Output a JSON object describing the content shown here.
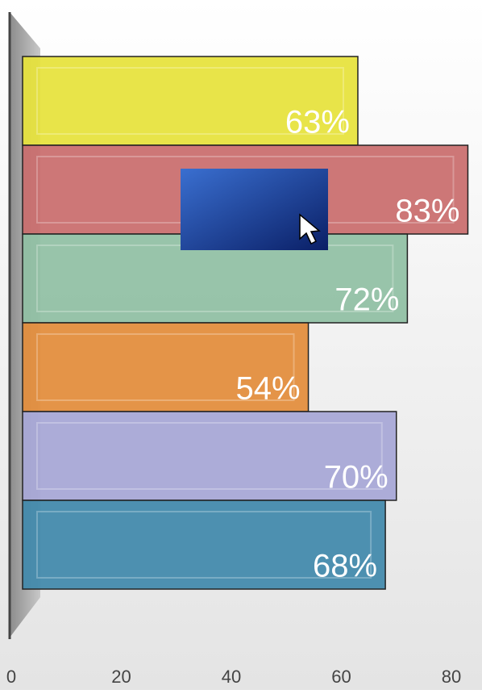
{
  "chart_data": {
    "type": "bar",
    "orientation": "horizontal",
    "categories": [
      null,
      null,
      null,
      null,
      null,
      null
    ],
    "values": [
      63,
      83,
      72,
      54,
      70,
      68
    ],
    "value_labels": [
      "63%",
      "83%",
      "72%",
      "54%",
      "70%",
      "68%"
    ],
    "colors": [
      "#e6e23a",
      "#c96b6b",
      "#8fbfa3",
      "#e38c3a",
      "#a6a6d6",
      "#3f88aa"
    ],
    "xlim": [
      0,
      80
    ],
    "xticks": [
      0,
      20,
      40,
      60,
      80
    ]
  }
}
